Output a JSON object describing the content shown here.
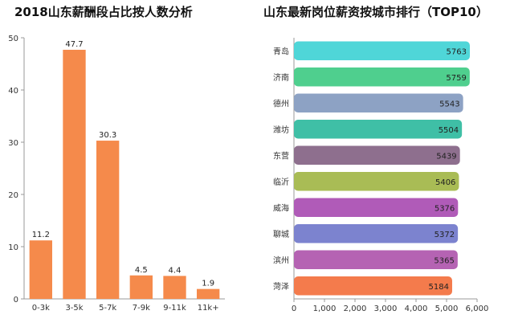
{
  "chart_data": [
    {
      "type": "bar",
      "title": "2018山东薪酬段占比按人数分析",
      "categories": [
        "0-3k",
        "3-5k",
        "5-7k",
        "7-9k",
        "9-11k",
        "11k+"
      ],
      "values": [
        11.2,
        47.7,
        30.3,
        4.5,
        4.4,
        1.9
      ],
      "ylim": [
        0,
        50
      ],
      "yticks": [
        0,
        10,
        20,
        30,
        40,
        50
      ],
      "color": "#F58A4B",
      "grid": false
    },
    {
      "type": "bar",
      "orientation": "horizontal",
      "title": "山东最新岗位薪资按城市排行（TOP10）",
      "categories": [
        "青岛",
        "济南",
        "德州",
        "潍坊",
        "东营",
        "临沂",
        "威海",
        "聊城",
        "滨州",
        "菏泽"
      ],
      "values": [
        5763,
        5759,
        5543,
        5504,
        5439,
        5406,
        5376,
        5372,
        5365,
        5184
      ],
      "colors": [
        "#4FD6D8",
        "#4FCF8E",
        "#8DA2C4",
        "#3FBFA6",
        "#8E6F8E",
        "#A9BC55",
        "#B05BB8",
        "#7C83CF",
        "#B563B3",
        "#F47B4C"
      ],
      "xlim": [
        0,
        6000
      ],
      "xticks": [
        "0",
        "1,000",
        "2,000",
        "3,000",
        "4,000",
        "5,000",
        "6,000"
      ],
      "grid": false
    }
  ]
}
